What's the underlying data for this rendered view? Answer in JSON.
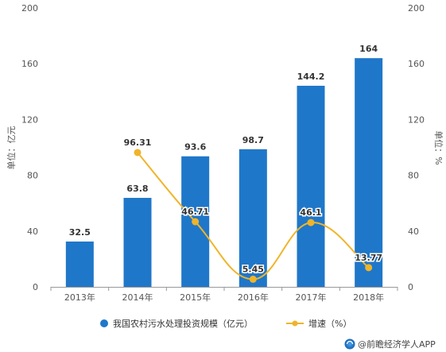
{
  "chart_data": {
    "type": "bar",
    "categories": [
      "2013年",
      "2014年",
      "2015年",
      "2016年",
      "2017年",
      "2018年"
    ],
    "series": [
      {
        "name": "我国农村污水处理投资规模（亿元）",
        "type": "bar",
        "axis": "left",
        "color": "#1f77c9",
        "values": [
          32.5,
          63.8,
          93.6,
          98.7,
          144.2,
          164
        ],
        "labels": [
          "32.5",
          "63.8",
          "93.6",
          "98.7",
          "144.2",
          "164"
        ]
      },
      {
        "name": "增速（%）",
        "type": "line",
        "axis": "right",
        "color": "#f0b429",
        "values": [
          null,
          96.31,
          46.71,
          5.45,
          46.1,
          13.77
        ],
        "labels": [
          "",
          "96.31",
          "46.71",
          "5.45",
          "46.1",
          "13.77"
        ]
      }
    ],
    "ylabel_left": "单位：亿元",
    "ylabel_right": "单位：%",
    "ylim_left": [
      0,
      200
    ],
    "ylim_right": [
      0,
      200
    ],
    "yticks_left": [
      "0",
      "40",
      "80",
      "120",
      "160",
      "200"
    ],
    "yticks_right": [
      "0",
      "40",
      "80",
      "120",
      "160",
      "200"
    ],
    "legend_position": "bottom",
    "grid": false
  },
  "source": {
    "text": "@前瞻经济学人APP",
    "icon": "qianzhan-logo-icon"
  }
}
